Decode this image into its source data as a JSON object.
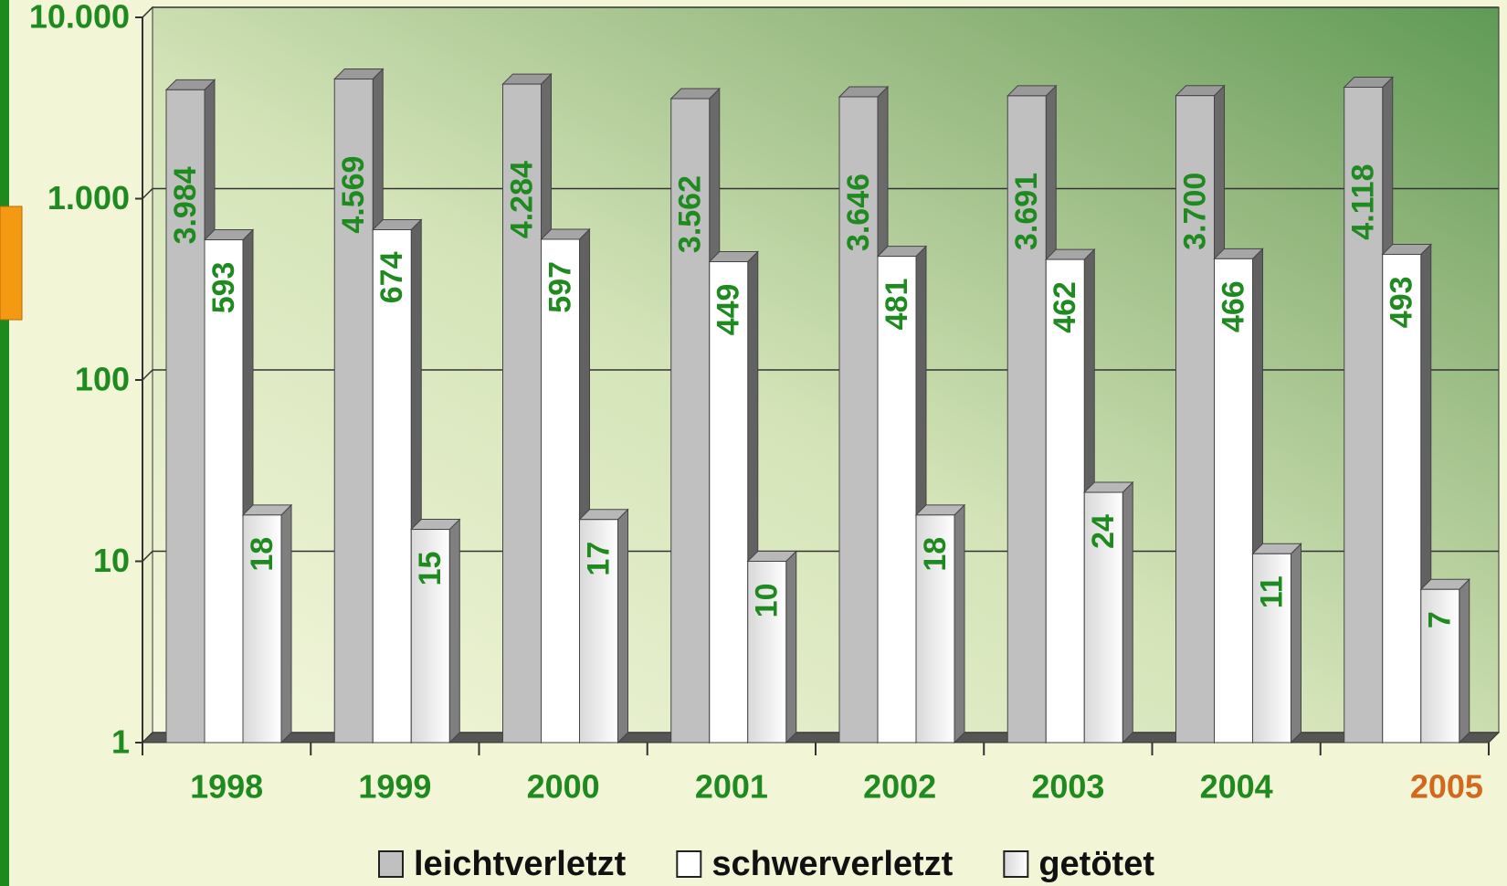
{
  "chart_data": {
    "type": "bar3d",
    "categories": [
      "1998",
      "1999",
      "2000",
      "2001",
      "2002",
      "2003",
      "2004",
      "2005"
    ],
    "category_colors": [
      "#1f8a1f",
      "#1f8a1f",
      "#1f8a1f",
      "#1f8a1f",
      "#1f8a1f",
      "#1f8a1f",
      "#1f8a1f",
      "#d2691e"
    ],
    "series": [
      {
        "name": "leichtverletzt",
        "color": "#c0c0c0",
        "values": [
          3984,
          4569,
          4284,
          3562,
          3646,
          3691,
          3700,
          4118
        ],
        "value_labels": [
          "3.984",
          "4.569",
          "4.284",
          "3.562",
          "3.646",
          "3.691",
          "3.700",
          "4.118"
        ]
      },
      {
        "name": "schwerverletzt",
        "color": "#ffffff",
        "values": [
          593,
          674,
          597,
          449,
          481,
          462,
          466,
          493
        ]
      },
      {
        "name": "getötet",
        "color": "#e6e6e6",
        "values": [
          18,
          15,
          17,
          10,
          18,
          24,
          11,
          7
        ]
      }
    ],
    "ylim": [
      1,
      10000
    ],
    "yticks": [
      1,
      10,
      100,
      {
        "value": 1000,
        "label": "1.000"
      },
      {
        "value": 10000,
        "label": "10.000"
      }
    ],
    "log_scale": true,
    "grid": true,
    "legend": "bottom",
    "label_color": "#1f8a1f"
  }
}
